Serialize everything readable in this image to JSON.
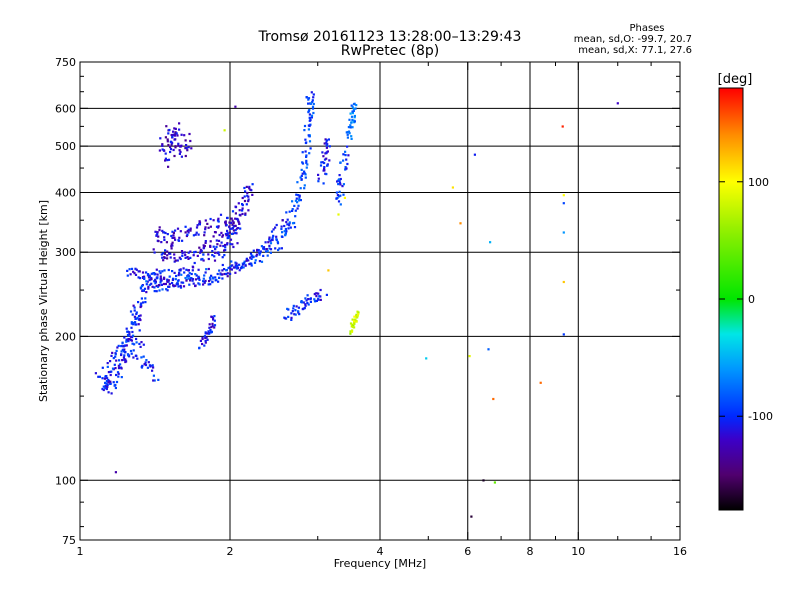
{
  "header": {
    "title_line1": "Tromsø 20161123 13:28:00–13:29:43",
    "title_line2": "RwPretec (8p)"
  },
  "stats": {
    "heading": "Phases",
    "line_o": "mean, sd,O: -99.7, 20.7",
    "line_x": "mean, sd,X:  77.1, 27.6"
  },
  "chart_data": {
    "type": "scatter",
    "xlabel": "Frequency [MHz]",
    "ylabel": "Stationary phase Virtual Height [km]",
    "x_scale": "log",
    "y_scale": "log",
    "xlim": [
      1,
      16
    ],
    "ylim": [
      75,
      750
    ],
    "x_ticks": [
      1,
      2,
      4,
      6,
      8,
      10,
      16
    ],
    "x_tick_labels": [
      "1",
      "2",
      "4",
      "6",
      "8",
      "10",
      "16"
    ],
    "x_minor_ticks": [
      3,
      5,
      7,
      9,
      12,
      14
    ],
    "y_ticks": [
      75,
      100,
      200,
      300,
      400,
      500,
      600,
      750
    ],
    "y_tick_labels": [
      "75",
      "100",
      "200",
      "300",
      "400",
      "500",
      "600",
      "750"
    ],
    "x_grid": [
      2,
      4,
      6,
      8,
      10
    ],
    "y_grid": [
      100,
      200,
      300,
      400,
      500,
      600
    ],
    "grid": true,
    "colorbar": {
      "label": "[deg]",
      "range": [
        -180,
        180
      ],
      "ticks": [
        100,
        0,
        -100
      ],
      "tick_labels": [
        "100",
        "0",
        "-100"
      ]
    },
    "traces": [
      {
        "points": [
          [
            1.1,
            162
          ],
          [
            1.14,
            157
          ],
          [
            1.18,
            165
          ],
          [
            1.22,
            178
          ],
          [
            1.25,
            195
          ],
          [
            1.28,
            212
          ],
          [
            1.3,
            228
          ],
          [
            1.35,
            258
          ],
          [
            1.45,
            265
          ],
          [
            1.58,
            270
          ],
          [
            1.75,
            285
          ],
          [
            1.95,
            305
          ],
          [
            2.05,
            330
          ]
        ],
        "phase": -105,
        "spread": 0.05
      },
      {
        "points": [
          [
            1.35,
            253
          ],
          [
            1.5,
            258
          ],
          [
            1.7,
            264
          ],
          [
            1.9,
            272
          ],
          [
            2.1,
            283
          ],
          [
            2.3,
            296
          ],
          [
            2.5,
            315
          ],
          [
            2.65,
            345
          ],
          [
            2.75,
            390
          ],
          [
            2.82,
            450
          ],
          [
            2.86,
            520
          ],
          [
            2.89,
            600
          ],
          [
            2.9,
            640
          ]
        ],
        "phase": -90,
        "spread": 0.04
      },
      {
        "points": [
          [
            1.25,
            275
          ],
          [
            1.35,
            268
          ],
          [
            1.45,
            262
          ],
          [
            1.6,
            258
          ],
          [
            1.8,
            262
          ],
          [
            2.0,
            272
          ],
          [
            2.2,
            290
          ],
          [
            2.4,
            318
          ],
          [
            2.6,
            360
          ]
        ],
        "phase": -110,
        "spread": 0.03
      },
      {
        "points": [
          [
            1.4,
            330
          ],
          [
            1.5,
            320
          ],
          [
            1.6,
            325
          ],
          [
            1.75,
            335
          ],
          [
            1.9,
            345
          ],
          [
            2.05,
            360
          ],
          [
            2.15,
            380
          ],
          [
            2.2,
            410
          ]
        ],
        "phase": -115,
        "spread": 0.05
      },
      {
        "points": [
          [
            1.42,
            300
          ],
          [
            1.55,
            295
          ],
          [
            1.7,
            300
          ],
          [
            1.85,
            312
          ],
          [
            2.0,
            328
          ],
          [
            2.1,
            345
          ]
        ],
        "phase": -118,
        "spread": 0.04
      },
      {
        "points": [
          [
            1.45,
            470
          ],
          [
            1.5,
            500
          ],
          [
            1.55,
            540
          ],
          [
            1.6,
            510
          ],
          [
            1.65,
            480
          ]
        ],
        "phase": -120,
        "spread": 0.07
      },
      {
        "points": [
          [
            1.12,
            170
          ],
          [
            1.2,
            185
          ],
          [
            1.28,
            200
          ],
          [
            1.34,
            175
          ],
          [
            1.42,
            168
          ]
        ],
        "phase": -100,
        "spread": 0.06
      },
      {
        "points": [
          [
            1.75,
            192
          ],
          [
            1.82,
            205
          ],
          [
            1.86,
            218
          ]
        ],
        "phase": -110,
        "spread": 0.03
      },
      {
        "points": [
          [
            2.6,
            220
          ],
          [
            2.75,
            230
          ],
          [
            2.9,
            240
          ],
          [
            3.1,
            245
          ]
        ],
        "phase": -100,
        "spread": 0.04
      },
      {
        "points": [
          [
            3.05,
            430
          ],
          [
            3.1,
            470
          ],
          [
            3.15,
            520
          ]
        ],
        "phase": -108,
        "spread": 0.04
      },
      {
        "points": [
          [
            3.3,
            380
          ],
          [
            3.35,
            430
          ],
          [
            3.4,
            490
          ]
        ],
        "phase": -95,
        "spread": 0.04
      },
      {
        "points": [
          [
            3.45,
            520
          ],
          [
            3.52,
            570
          ],
          [
            3.55,
            610
          ]
        ],
        "phase": -70,
        "spread": 0.03
      },
      {
        "points": [
          [
            3.5,
            205
          ],
          [
            3.55,
            215
          ],
          [
            3.6,
            225
          ]
        ],
        "phase": 80,
        "spread": 0.02
      }
    ],
    "isolated_points": [
      {
        "x": 1.18,
        "y": 104,
        "phase": -130
      },
      {
        "x": 1.95,
        "y": 540,
        "phase": 80
      },
      {
        "x": 2.05,
        "y": 605,
        "phase": -130
      },
      {
        "x": 3.3,
        "y": 360,
        "phase": 90
      },
      {
        "x": 3.15,
        "y": 275,
        "phase": 120
      },
      {
        "x": 3.4,
        "y": 390,
        "phase": 100
      },
      {
        "x": 4.95,
        "y": 180,
        "phase": -40
      },
      {
        "x": 5.6,
        "y": 410,
        "phase": 110
      },
      {
        "x": 5.8,
        "y": 345,
        "phase": 140
      },
      {
        "x": 6.05,
        "y": 182,
        "phase": 90
      },
      {
        "x": 6.2,
        "y": 480,
        "phase": -105
      },
      {
        "x": 6.45,
        "y": 100,
        "phase": -170
      },
      {
        "x": 6.6,
        "y": 188,
        "phase": -80
      },
      {
        "x": 6.75,
        "y": 148,
        "phase": 150
      },
      {
        "x": 6.65,
        "y": 315,
        "phase": -50
      },
      {
        "x": 6.1,
        "y": 84,
        "phase": -165
      },
      {
        "x": 6.8,
        "y": 99,
        "phase": 40
      },
      {
        "x": 8.4,
        "y": 160,
        "phase": 150
      },
      {
        "x": 9.3,
        "y": 550,
        "phase": 170
      },
      {
        "x": 9.35,
        "y": 380,
        "phase": -90
      },
      {
        "x": 9.35,
        "y": 330,
        "phase": -60
      },
      {
        "x": 9.35,
        "y": 395,
        "phase": 100
      },
      {
        "x": 9.35,
        "y": 260,
        "phase": 120
      },
      {
        "x": 9.35,
        "y": 202,
        "phase": -95
      },
      {
        "x": 12.0,
        "y": 615,
        "phase": -120
      }
    ]
  }
}
